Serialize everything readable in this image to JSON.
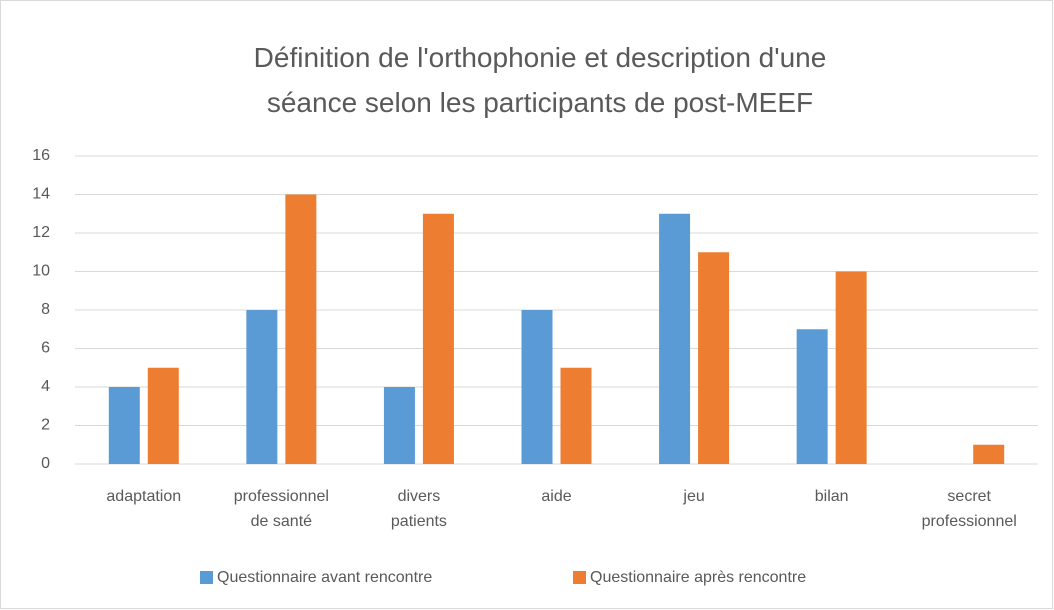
{
  "chart_data": {
    "type": "bar",
    "title": "Définition de l'orthophonie et description d'une séance selon les participants de post-MEEF",
    "categories": [
      "adaptation",
      "professionnel de santé",
      "divers patients",
      "aide",
      "jeu",
      "bilan",
      "secret professionnel"
    ],
    "series": [
      {
        "name": "Questionnaire avant rencontre",
        "color": "#5b9bd5",
        "values": [
          4,
          8,
          4,
          8,
          13,
          7,
          0
        ]
      },
      {
        "name": "Questionnaire après rencontre",
        "color": "#ed7d31",
        "values": [
          5,
          14,
          13,
          5,
          11,
          10,
          1
        ]
      }
    ],
    "ylim": [
      0,
      16
    ],
    "yticks": [
      0,
      2,
      4,
      6,
      8,
      10,
      12,
      14,
      16
    ],
    "grid": true,
    "legend": "bottom"
  }
}
